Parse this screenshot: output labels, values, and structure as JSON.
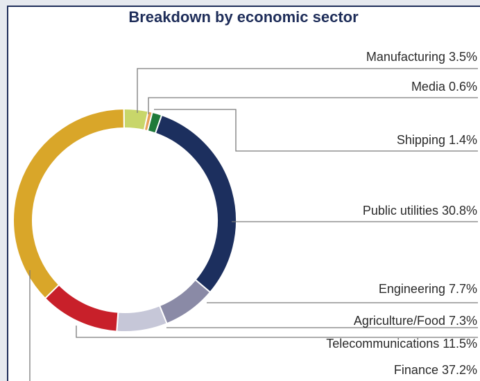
{
  "chart_data": {
    "type": "pie",
    "variant": "donut",
    "title": "Breakdown by economic sector",
    "slices": [
      {
        "label": "Manufacturing",
        "value": 3.5,
        "display": "Manufacturing 3.5%",
        "color": "#c8d66a"
      },
      {
        "label": "Media",
        "value": 0.6,
        "display": "Media 0.6%",
        "color": "#e8a05a"
      },
      {
        "label": "Shipping",
        "value": 1.4,
        "display": "Shipping 1.4%",
        "color": "#1f7a3a"
      },
      {
        "label": "Public utilities",
        "value": 30.8,
        "display": "Public utilities 30.8%",
        "color": "#1c2f5e"
      },
      {
        "label": "Engineering",
        "value": 7.7,
        "display": "Engineering 7.7%",
        "color": "#8a8aa6"
      },
      {
        "label": "Agriculture/Food",
        "value": 7.3,
        "display": "Agriculture/Food 7.3%",
        "color": "#c6c7d8"
      },
      {
        "label": "Telecommunications",
        "value": 11.5,
        "display": "Telecommunications 11.5%",
        "color": "#c8202a"
      },
      {
        "label": "Finance",
        "value": 37.2,
        "display": "Finance 37.2%",
        "color": "#d9a629"
      }
    ]
  },
  "colors": {
    "title": "#1e2d59",
    "frame": "#1e2d59",
    "leader": "#7a7a7a",
    "background": "#e6e9ef"
  }
}
